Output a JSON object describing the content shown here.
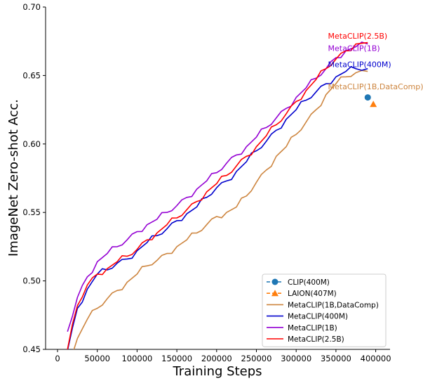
{
  "chart_data": {
    "type": "line",
    "xlabel": "Training Steps",
    "ylabel": "ImageNet Zero-shot Acc.",
    "xlim": [
      -15000,
      418000
    ],
    "ylim": [
      0.45,
      0.7
    ],
    "xticks": [
      0,
      50000,
      100000,
      150000,
      200000,
      250000,
      300000,
      350000,
      400000
    ],
    "xtick_labels": [
      "0",
      "50000",
      "100000",
      "150000",
      "200000",
      "250000",
      "300000",
      "350000",
      "400000"
    ],
    "yticks": [
      0.45,
      0.5,
      0.55,
      0.6,
      0.65,
      0.7
    ],
    "ytick_labels": [
      "0.45",
      "0.50",
      "0.55",
      "0.60",
      "0.65",
      "0.70"
    ],
    "grid": false,
    "legend_position": "lower-right",
    "points": [
      {
        "name": "CLIP(400M)",
        "color": "#1f77b4",
        "marker": "circle",
        "x": 390000,
        "y": 0.634
      },
      {
        "name": "LAION(407M)",
        "color": "#ff7f0e",
        "marker": "triangle",
        "x": 397000,
        "y": 0.629
      }
    ],
    "series": [
      {
        "name": "MetaCLIP(1B,DataComp)",
        "color": "#cd853f",
        "x": [
          12500,
          25000,
          37500,
          50000,
          62500,
          75000,
          87500,
          100000,
          112500,
          125000,
          137500,
          150000,
          162500,
          175000,
          187500,
          200000,
          212500,
          225000,
          237500,
          250000,
          262500,
          275000,
          287500,
          300000,
          312500,
          325000,
          337500,
          350000,
          362500,
          375000,
          390000
        ],
        "y": [
          0.44,
          0.458,
          0.472,
          0.48,
          0.487,
          0.493,
          0.499,
          0.505,
          0.511,
          0.515,
          0.52,
          0.525,
          0.53,
          0.535,
          0.541,
          0.547,
          0.55,
          0.554,
          0.562,
          0.572,
          0.581,
          0.591,
          0.598,
          0.607,
          0.616,
          0.625,
          0.636,
          0.644,
          0.649,
          0.652,
          0.653
        ]
      },
      {
        "name": "MetaCLIP(400M)",
        "color": "#0000cd",
        "x": [
          12500,
          25000,
          37500,
          50000,
          62500,
          75000,
          87500,
          100000,
          112500,
          125000,
          137500,
          150000,
          162500,
          175000,
          187500,
          200000,
          212500,
          225000,
          237500,
          250000,
          262500,
          275000,
          287500,
          300000,
          312500,
          325000,
          337500,
          350000,
          362500,
          375000,
          390000
        ],
        "y": [
          0.449,
          0.48,
          0.494,
          0.505,
          0.508,
          0.513,
          0.516,
          0.522,
          0.528,
          0.533,
          0.538,
          0.544,
          0.549,
          0.554,
          0.561,
          0.568,
          0.573,
          0.58,
          0.587,
          0.595,
          0.602,
          0.61,
          0.618,
          0.625,
          0.632,
          0.638,
          0.644,
          0.649,
          0.653,
          0.655,
          0.655
        ]
      },
      {
        "name": "MetaCLIP(1B)",
        "color": "#9400d3",
        "x": [
          12500,
          25000,
          37500,
          50000,
          62500,
          75000,
          87500,
          100000,
          112500,
          125000,
          137500,
          150000,
          162500,
          175000,
          187500,
          200000,
          212500,
          225000,
          237500,
          250000,
          262500,
          275000,
          287500,
          300000,
          312500,
          325000,
          337500,
          350000,
          362500,
          375000,
          390000
        ],
        "y": [
          0.463,
          0.488,
          0.503,
          0.514,
          0.52,
          0.525,
          0.53,
          0.536,
          0.541,
          0.545,
          0.55,
          0.555,
          0.561,
          0.567,
          0.573,
          0.579,
          0.586,
          0.592,
          0.598,
          0.605,
          0.612,
          0.619,
          0.626,
          0.634,
          0.641,
          0.648,
          0.655,
          0.663,
          0.668,
          0.671,
          0.673
        ]
      },
      {
        "name": "MetaCLIP(2.5B)",
        "color": "#ff0000",
        "x": [
          12500,
          25000,
          37500,
          50000,
          62500,
          75000,
          87500,
          100000,
          112500,
          125000,
          137500,
          150000,
          162500,
          175000,
          187500,
          200000,
          212500,
          225000,
          237500,
          250000,
          262500,
          275000,
          287500,
          300000,
          312500,
          325000,
          337500,
          350000,
          362500,
          375000,
          390000
        ],
        "y": [
          0.45,
          0.482,
          0.497,
          0.505,
          0.509,
          0.514,
          0.518,
          0.523,
          0.53,
          0.535,
          0.541,
          0.546,
          0.552,
          0.558,
          0.565,
          0.571,
          0.577,
          0.584,
          0.591,
          0.598,
          0.606,
          0.614,
          0.622,
          0.631,
          0.639,
          0.647,
          0.655,
          0.662,
          0.668,
          0.673,
          0.674
        ]
      }
    ],
    "annotations": [
      {
        "text": "MetaCLIP(2.5B)",
        "color": "#ff0000",
        "x": 340000,
        "y": 0.677
      },
      {
        "text": "MetaCLIP(1B)",
        "color": "#9400d3",
        "x": 340000,
        "y": 0.668
      },
      {
        "text": "MetaCLIP(400M)",
        "color": "#0000cd",
        "x": 340000,
        "y": 0.656
      },
      {
        "text": "MetaCLIP(1B,DataComp)",
        "color": "#cd853f",
        "x": 340000,
        "y": 0.64
      }
    ],
    "legend": [
      {
        "label": "CLIP(400M)",
        "color": "#1f77b4",
        "kind": "dashed-circle"
      },
      {
        "label": "LAION(407M)",
        "color": "#ff7f0e",
        "kind": "dashed-triangle"
      },
      {
        "label": "MetaCLIP(1B,DataComp)",
        "color": "#cd853f",
        "kind": "line"
      },
      {
        "label": "MetaCLIP(400M)",
        "color": "#0000cd",
        "kind": "line"
      },
      {
        "label": "MetaCLIP(1B)",
        "color": "#9400d3",
        "kind": "line"
      },
      {
        "label": "MetaCLIP(2.5B)",
        "color": "#ff0000",
        "kind": "line"
      }
    ]
  }
}
